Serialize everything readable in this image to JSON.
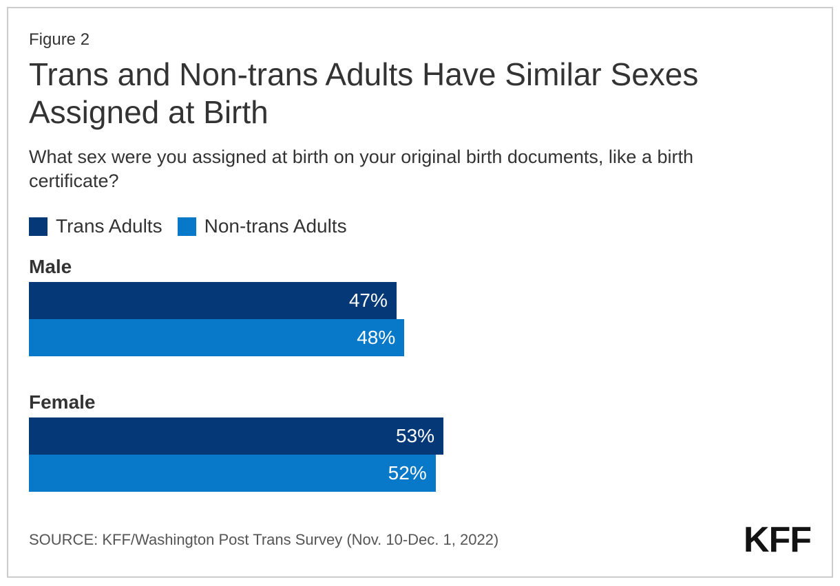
{
  "figure_label": "Figure 2",
  "title": "Trans and Non-trans Adults Have Similar Sexes Assigned at Birth",
  "subtitle": "What sex were you assigned at birth on your original birth documents, like a birth certificate?",
  "legend": {
    "items": [
      {
        "label": "Trans Adults",
        "color": "#053876"
      },
      {
        "label": "Non-trans Adults",
        "color": "#0779C8"
      }
    ]
  },
  "footer": {
    "source": "SOURCE: KFF/Washington Post Trans Survey (Nov. 10-Dec. 1, 2022)",
    "logo": "KFF"
  },
  "chart_data": {
    "type": "bar",
    "orientation": "horizontal",
    "title": "Trans and Non-trans Adults Have Similar Sexes Assigned at Birth",
    "question": "What sex were you assigned at birth on your original birth documents, like a birth certificate?",
    "categories": [
      "Male",
      "Female"
    ],
    "series": [
      {
        "name": "Trans Adults",
        "color": "#053876",
        "values": [
          47,
          53
        ],
        "labels": [
          "47%",
          "53%"
        ]
      },
      {
        "name": "Non-trans Adults",
        "color": "#0779C8",
        "values": [
          48,
          52
        ],
        "labels": [
          "48%",
          "52%"
        ]
      }
    ],
    "value_suffix": "%",
    "xlim": [
      0,
      100
    ],
    "grid": false,
    "legend_position": "top-left",
    "value_labels": "inside-right"
  }
}
